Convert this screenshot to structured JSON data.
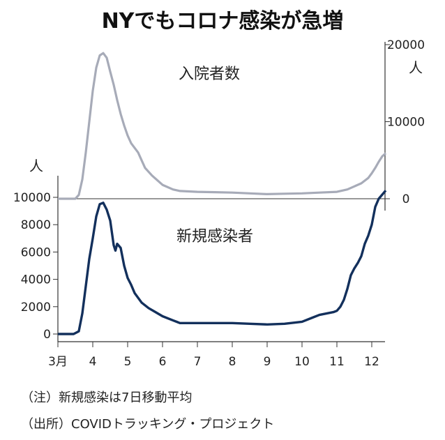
{
  "title": "NYでもコロナ感染が急増",
  "notes": {
    "note": "（注）新規感染は7日移動平均",
    "source": "（出所）COVIDトラッキング・プロジェクト"
  },
  "colors": {
    "hospitalized": "#a7abb8",
    "new_cases": "#13305c",
    "axis": "#333333"
  },
  "chart_data": [
    {
      "type": "line",
      "name": "hospitalized",
      "label": "入院者数",
      "unit": "人",
      "axis_side": "right",
      "ylim": [
        0,
        20000
      ],
      "yticks": [
        0,
        10000,
        20000
      ],
      "x_ticks": [
        "3月",
        "4",
        "5",
        "6",
        "7",
        "8",
        "9",
        "10",
        "11",
        "12"
      ],
      "x": [
        3.0,
        3.5,
        3.6,
        3.7,
        3.8,
        3.9,
        4.0,
        4.1,
        4.2,
        4.3,
        4.4,
        4.5,
        4.6,
        4.7,
        4.8,
        4.9,
        5.0,
        5.1,
        5.2,
        5.3,
        5.4,
        5.5,
        5.7,
        6.0,
        6.3,
        6.5,
        7.0,
        7.5,
        8.0,
        8.5,
        9.0,
        9.5,
        10.0,
        10.5,
        11.0,
        11.3,
        11.5,
        11.7,
        11.9,
        12.0,
        12.1,
        12.2,
        12.3,
        12.4
      ],
      "values": [
        0,
        0,
        500,
        2500,
        6000,
        10000,
        14000,
        17000,
        18600,
        18900,
        18300,
        16500,
        14800,
        12800,
        11000,
        9500,
        8200,
        7200,
        6600,
        6000,
        5000,
        4000,
        3000,
        1800,
        1200,
        1000,
        900,
        850,
        800,
        700,
        600,
        650,
        700,
        800,
        900,
        1200,
        1600,
        2000,
        2700,
        3300,
        4000,
        4800,
        5500,
        5900
      ]
    },
    {
      "type": "line",
      "name": "new_cases",
      "label": "新規感染者",
      "unit": "人",
      "axis_side": "left",
      "ylim": [
        0,
        10000
      ],
      "yticks": [
        0,
        2000,
        4000,
        6000,
        8000,
        10000
      ],
      "x_ticks": [
        "3月",
        "4",
        "5",
        "6",
        "7",
        "8",
        "9",
        "10",
        "11",
        "12"
      ],
      "x": [
        3.0,
        3.45,
        3.6,
        3.7,
        3.8,
        3.9,
        4.0,
        4.1,
        4.2,
        4.3,
        4.4,
        4.5,
        4.6,
        4.65,
        4.7,
        4.8,
        4.9,
        5.0,
        5.1,
        5.2,
        5.4,
        5.6,
        5.8,
        6.0,
        6.3,
        6.5,
        7.0,
        7.5,
        8.0,
        8.5,
        9.0,
        9.5,
        10.0,
        10.3,
        10.5,
        10.7,
        10.9,
        11.0,
        11.1,
        11.2,
        11.3,
        11.4,
        11.5,
        11.6,
        11.7,
        11.8,
        11.9,
        12.0,
        12.1,
        12.2,
        12.3,
        12.4
      ],
      "values": [
        0,
        0,
        200,
        1500,
        3500,
        5500,
        7000,
        8600,
        9500,
        9600,
        9100,
        8300,
        6500,
        6100,
        6600,
        6300,
        5000,
        4100,
        3600,
        3000,
        2300,
        1900,
        1600,
        1300,
        1000,
        800,
        800,
        800,
        800,
        750,
        700,
        750,
        900,
        1200,
        1400,
        1500,
        1600,
        1700,
        2000,
        2500,
        3300,
        4300,
        4800,
        5200,
        5700,
        6600,
        7200,
        8000,
        9300,
        9900,
        10200,
        10500
      ]
    }
  ]
}
